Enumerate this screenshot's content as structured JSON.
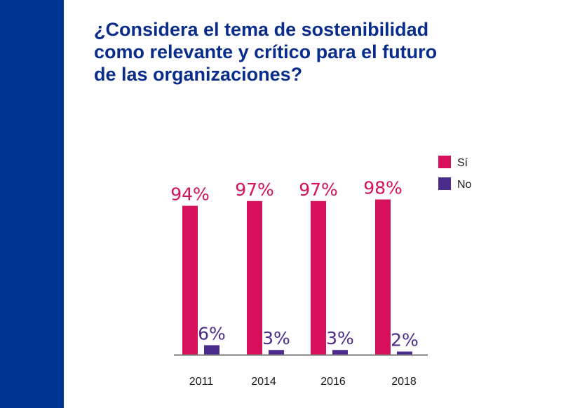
{
  "colors": {
    "band": "#003591",
    "title": "#0a2d8c",
    "si": "#d6105a",
    "no": "#4b2b8c",
    "axis": "#7a7a7a"
  },
  "title_lines": [
    "¿Considera el tema de sostenibilidad",
    "como relevante y crítico para el futuro",
    "de las organizaciones?"
  ],
  "chart_data": {
    "type": "bar",
    "title": "¿Considera el tema de sostenibilidad como relevante y crítico para el futuro de las organizaciones?",
    "categories": [
      "2011",
      "2014",
      "2016",
      "2018"
    ],
    "series": [
      {
        "name": "Sí",
        "values": [
          94,
          97,
          97,
          98
        ],
        "labels": [
          "94%",
          "97%",
          "97%",
          "98%"
        ]
      },
      {
        "name": "No",
        "values": [
          6,
          3,
          3,
          2
        ],
        "labels": [
          "6%",
          "3%",
          "3%",
          "2%"
        ]
      }
    ],
    "xlabel": "",
    "ylabel": "",
    "ylim": [
      0,
      100
    ],
    "grid": false,
    "legend": "top-right"
  }
}
